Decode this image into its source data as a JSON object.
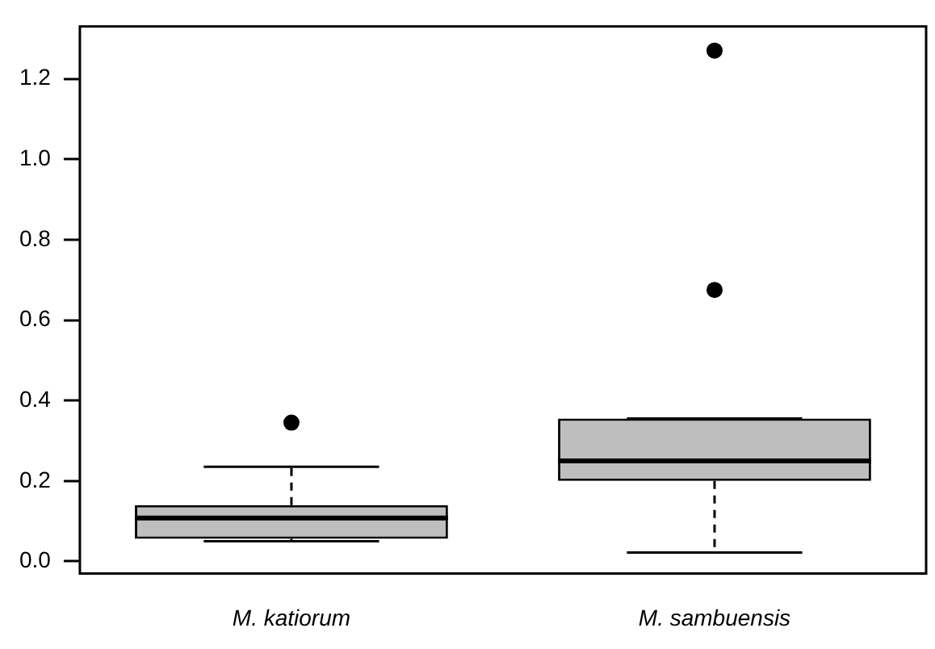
{
  "chart_data": {
    "type": "box",
    "categories": [
      "M. katiorum",
      "M. sambuensis"
    ],
    "color": "#bebebe",
    "boxes": [
      {
        "low": 0.05,
        "q1": 0.056,
        "median": 0.108,
        "q3": 0.14,
        "high": 0.235,
        "outliers": [
          0.345
        ]
      },
      {
        "low": 0.022,
        "q1": 0.2,
        "median": 0.25,
        "q3": 0.355,
        "high": 0.355,
        "outliers": [
          0.675,
          1.27
        ]
      }
    ],
    "ylim": [
      -0.03,
      1.33
    ],
    "yticks": [
      {
        "value": 0,
        "label": "0.0"
      },
      0.2,
      0.4,
      0.6,
      0.8,
      {
        "value": 1,
        "label": "1.0"
      },
      1.2
    ],
    "grid": false,
    "legend": false
  }
}
